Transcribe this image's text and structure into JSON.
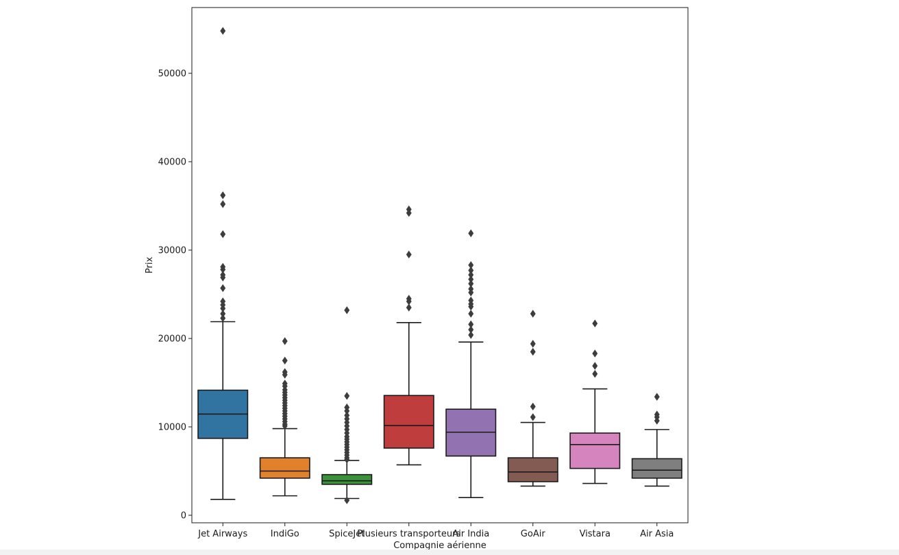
{
  "chart_data": {
    "type": "box",
    "xlabel": "Compagnie aérienne",
    "ylabel": "Prix",
    "ylim": [
      -1000,
      57000
    ],
    "yticks": [
      0,
      10000,
      20000,
      30000,
      40000,
      50000
    ],
    "yticklabels": [
      "0",
      "10000",
      "20000",
      "30000",
      "40000",
      "50000"
    ],
    "grid": false,
    "series": [
      {
        "category": "Jet Airways",
        "color": "#3274a1",
        "whisker_low": 1800,
        "q1": 8700,
        "median": 11450,
        "q3": 14150,
        "whisker_high": 21900,
        "outliers": [
          54800,
          36200,
          35200,
          31800,
          28100,
          27800,
          27200,
          26900,
          25700,
          24200,
          23800,
          23400,
          22800,
          22300
        ]
      },
      {
        "category": "IndiGo",
        "color": "#e1812c",
        "whisker_low": 2200,
        "q1": 4200,
        "median": 5000,
        "q3": 6500,
        "whisker_high": 9800,
        "outliers": [
          19700,
          17500,
          16200,
          15900,
          14900,
          14600,
          14200,
          13900,
          13600,
          13300,
          13000,
          12700,
          12400,
          12100,
          11800,
          11500,
          11200,
          10900,
          10600,
          10300,
          10100
        ]
      },
      {
        "category": "SpiceJet",
        "color": "#3a923a",
        "whisker_low": 1900,
        "q1": 3500,
        "median": 3900,
        "q3": 4600,
        "whisker_high": 6200,
        "outliers": [
          23200,
          13500,
          12200,
          11800,
          11300,
          10900,
          10500,
          10100,
          9700,
          9300,
          8900,
          8600,
          8300,
          8000,
          7700,
          7400,
          7100,
          6800,
          6500,
          6300,
          1700
        ]
      },
      {
        "category": "Plusieurs transporteurs",
        "color": "#c03d3e",
        "whisker_low": 5700,
        "q1": 7600,
        "median": 10150,
        "q3": 13550,
        "whisker_high": 21800,
        "outliers": [
          34600,
          34200,
          29500,
          24500,
          24200,
          23500
        ]
      },
      {
        "category": "Air India",
        "color": "#9372b2",
        "whisker_low": 2000,
        "q1": 6700,
        "median": 9400,
        "q3": 12000,
        "whisker_high": 19600,
        "outliers": [
          31900,
          28300,
          27700,
          27200,
          26700,
          26200,
          25600,
          25200,
          24300,
          23900,
          23600,
          22800,
          21600,
          21000,
          20400
        ]
      },
      {
        "category": "GoAir",
        "color": "#845b53",
        "whisker_low": 3300,
        "q1": 3800,
        "median": 4900,
        "q3": 6500,
        "whisker_high": 10500,
        "outliers": [
          22800,
          19400,
          18500,
          12300,
          11100
        ]
      },
      {
        "category": "Vistara",
        "color": "#d684bd",
        "whisker_low": 3600,
        "q1": 5300,
        "median": 8000,
        "q3": 9300,
        "whisker_high": 14300,
        "outliers": [
          21700,
          18300,
          16900,
          16000
        ]
      },
      {
        "category": "Air Asia",
        "color": "#7f7f7f",
        "whisker_low": 3300,
        "q1": 4200,
        "median": 5100,
        "q3": 6400,
        "whisker_high": 9700,
        "outliers": [
          13400,
          11400,
          11100,
          10700
        ]
      }
    ],
    "categories": [
      "Jet Airways",
      "IndiGo",
      "SpiceJet",
      "Plusieurs transporteurs",
      "Air India",
      "GoAir",
      "Vistara",
      "Air Asia"
    ]
  }
}
